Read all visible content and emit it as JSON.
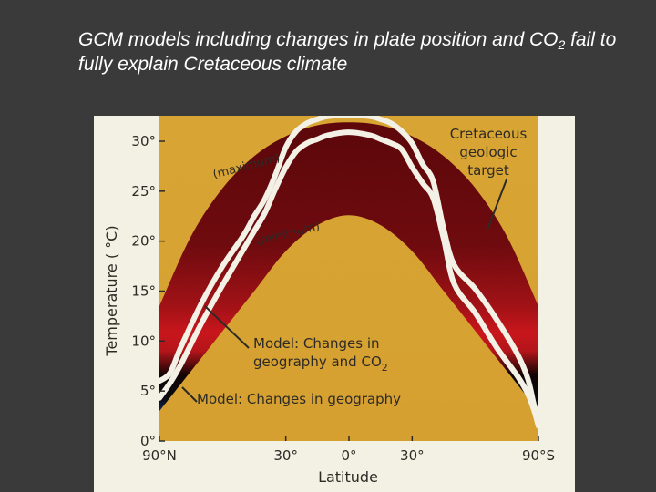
{
  "slide": {
    "title_part1": "GCM models including changes in plate position and CO",
    "title_sub": "2",
    "title_part2": " fail to fully explain Cretaceous climate"
  },
  "colors": {
    "background": "#3a3a3a",
    "plot_background": "#d9a534",
    "band_dark": "#6b0a0e",
    "band_red": "#c8161c",
    "model_line": "#f3f0e6",
    "cold_blue": "#2b56b8"
  },
  "chart_data": {
    "type": "line",
    "xlabel": "Latitude",
    "ylabel": "Temperature ( °C)",
    "xlim": [
      -90,
      90
    ],
    "ylim": [
      0,
      30
    ],
    "x_ticks": [
      {
        "value": -90,
        "label": "90°N"
      },
      {
        "value": -30,
        "label": "30°"
      },
      {
        "value": 0,
        "label": "0°"
      },
      {
        "value": 30,
        "label": "30°"
      },
      {
        "value": 90,
        "label": "90°S"
      }
    ],
    "y_ticks": [
      {
        "value": 0,
        "label": "0°"
      },
      {
        "value": 5,
        "label": "5°"
      },
      {
        "value": 10,
        "label": "10°"
      },
      {
        "value": 15,
        "label": "15°"
      },
      {
        "value": 20,
        "label": "20°"
      },
      {
        "value": 25,
        "label": "25°"
      },
      {
        "value": 30,
        "label": "30°"
      }
    ],
    "target_band": {
      "label": "Cretaceous geologic target",
      "label_lines": [
        "Cretaceous",
        "geologic",
        "target"
      ],
      "max_label": "(maximum)",
      "min_label": "(minimum)",
      "x": [
        -90,
        -75,
        -60,
        -45,
        -30,
        -15,
        0,
        15,
        30,
        45,
        60,
        75,
        90
      ],
      "max": [
        13.5,
        20.5,
        25.3,
        28.5,
        30.5,
        31.6,
        31.9,
        31.6,
        30.5,
        28.5,
        25.3,
        20.5,
        13.5
      ],
      "min": [
        3.0,
        7.0,
        11.0,
        15.0,
        19.0,
        21.6,
        22.6,
        21.6,
        19.0,
        15.0,
        11.0,
        7.0,
        3.0
      ]
    },
    "series": [
      {
        "name": "Model: Changes in geography and CO2",
        "label_line1": "Model: Changes in",
        "label_line2": "geography and CO",
        "label_sub": "2",
        "x": [
          -90,
          -85,
          -80,
          -70,
          -60,
          -50,
          -45,
          -40,
          -35,
          -30,
          -25,
          -20,
          -15,
          -10,
          0,
          10,
          15,
          20,
          25,
          30,
          35,
          40,
          45,
          50,
          60,
          70,
          80,
          85,
          88,
          90
        ],
        "y": [
          6.0,
          6.8,
          9.3,
          13.8,
          17.5,
          20.6,
          22.5,
          24.2,
          26.6,
          29.4,
          31.0,
          31.8,
          32.2,
          32.5,
          32.6,
          32.5,
          32.2,
          31.8,
          31.0,
          29.8,
          27.7,
          26.0,
          21.2,
          17.6,
          15.2,
          12.2,
          8.7,
          6.2,
          3.5,
          2.5
        ]
      },
      {
        "name": "Model: Changes in geography",
        "label": "Model: Changes in geography",
        "x": [
          -90,
          -85,
          -80,
          -70,
          -60,
          -50,
          -45,
          -40,
          -35,
          -30,
          -25,
          -20,
          -15,
          -10,
          0,
          10,
          15,
          20,
          25,
          30,
          35,
          40,
          45,
          50,
          60,
          70,
          80,
          85,
          88,
          90
        ],
        "y": [
          4.3,
          5.8,
          7.6,
          11.8,
          15.6,
          19.2,
          21.0,
          22.8,
          25.2,
          27.4,
          29.0,
          29.8,
          30.2,
          30.6,
          30.9,
          30.6,
          30.2,
          29.8,
          29.2,
          27.4,
          25.8,
          24.3,
          20.2,
          15.7,
          12.8,
          9.4,
          6.5,
          4.7,
          3.0,
          1.5
        ]
      }
    ]
  }
}
